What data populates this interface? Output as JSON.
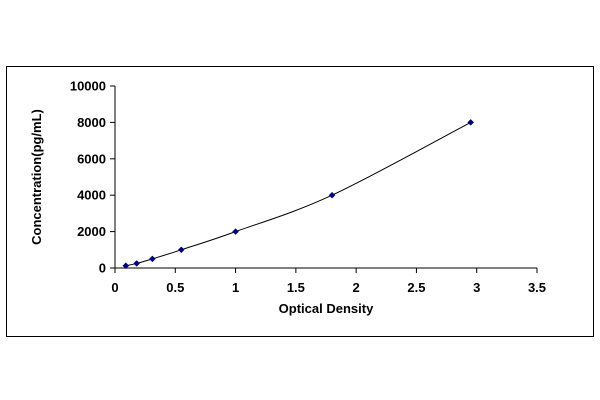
{
  "chart_data": {
    "type": "scatter",
    "title": "",
    "xlabel": "Optical Density",
    "ylabel": "Concentration(pg/mL)",
    "xlim": [
      0,
      3.5
    ],
    "ylim": [
      0,
      10000
    ],
    "x_ticks": [
      "0",
      "0.5",
      "1",
      "1.5",
      "2",
      "2.5",
      "3",
      "3.5"
    ],
    "y_ticks": [
      "0",
      "2000",
      "4000",
      "6000",
      "8000",
      "10000"
    ],
    "grid": false,
    "legend": "none",
    "series": [
      {
        "x": [
          0.09,
          0.18,
          0.31,
          0.55,
          1.0,
          1.8,
          2.95
        ],
        "y": [
          125,
          250,
          500,
          1000,
          2000,
          4000,
          8000
        ],
        "line": "smoothed",
        "color": "#000080"
      }
    ]
  }
}
